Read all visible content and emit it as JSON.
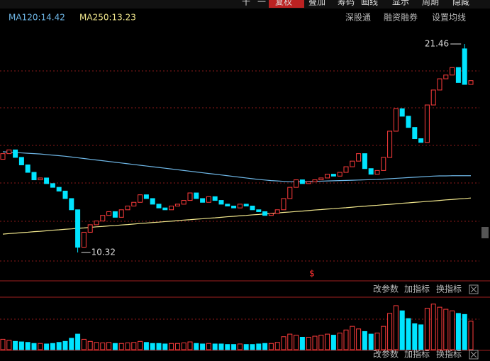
{
  "toolbar": [
    "十",
    "一",
    "复权",
    "叠加",
    "筹码",
    "画线",
    "显示",
    "周期",
    "隐藏"
  ],
  "top_links": [
    "深股通",
    "融资融券",
    "设置均线"
  ],
  "panel_buttons": [
    "改参数",
    "加指标",
    "换指标"
  ],
  "chart_data": {
    "type": "candlestick",
    "up_color": "#ff3c3c",
    "down_color": "#00e4ff",
    "ylim": [
      8.84,
      23.81
    ],
    "open": [
      15.3,
      15.6,
      15.8,
      15.4,
      15.0,
      14.6,
      14.2,
      14.3,
      14.0,
      13.8,
      13.6,
      13.2,
      12.6,
      10.6,
      11.4,
      11.8,
      12.0,
      12.3,
      12.5,
      12.2,
      12.6,
      12.8,
      13.0,
      13.4,
      13.2,
      12.9,
      12.7,
      12.6,
      12.8,
      12.9,
      13.1,
      13.5,
      13.2,
      13.0,
      13.3,
      13.1,
      12.9,
      12.8,
      12.7,
      12.9,
      12.8,
      12.6,
      12.5,
      12.3,
      12.4,
      12.6,
      13.2,
      13.8,
      14.2,
      14.0,
      14.1,
      14.2,
      14.3,
      14.5,
      14.4,
      14.6,
      14.9,
      15.2,
      15.6,
      14.8,
      14.5,
      14.7,
      15.4,
      16.8,
      18.0,
      17.6,
      17.0,
      16.4,
      16.2,
      18.2,
      19.0,
      19.6,
      19.8,
      20.2,
      21.2,
      19.3
    ],
    "close": [
      15.6,
      15.8,
      15.4,
      15.0,
      14.6,
      14.2,
      14.3,
      14.0,
      13.8,
      13.6,
      13.2,
      12.6,
      10.6,
      11.4,
      11.8,
      12.0,
      12.3,
      12.5,
      12.2,
      12.6,
      12.8,
      13.0,
      13.4,
      13.2,
      12.9,
      12.7,
      12.6,
      12.8,
      12.9,
      13.1,
      13.5,
      13.2,
      13.0,
      13.3,
      13.1,
      12.9,
      12.8,
      12.7,
      12.9,
      12.8,
      12.6,
      12.5,
      12.3,
      12.4,
      12.6,
      13.2,
      13.8,
      14.2,
      14.0,
      14.1,
      14.2,
      14.3,
      14.5,
      14.4,
      14.6,
      14.9,
      15.2,
      15.6,
      14.8,
      14.5,
      14.7,
      15.4,
      16.8,
      18.0,
      17.6,
      17.0,
      16.4,
      16.2,
      18.2,
      19.0,
      19.6,
      19.8,
      20.2,
      19.4,
      19.3,
      19.5
    ],
    "annotations": [
      {
        "label": "21.46",
        "value": 21.46
      },
      {
        "label": "10.32",
        "value": 10.32
      }
    ],
    "series": [
      {
        "name": "MA120",
        "label": "MA120:14.42",
        "color": "#6fb8e8",
        "values": [
          15.7,
          15.68,
          15.66,
          15.64,
          15.62,
          15.6,
          15.58,
          15.55,
          15.52,
          15.49,
          15.46,
          15.42,
          15.38,
          15.34,
          15.3,
          15.26,
          15.22,
          15.18,
          15.14,
          15.1,
          15.06,
          15.02,
          14.98,
          14.94,
          14.9,
          14.86,
          14.82,
          14.78,
          14.74,
          14.7,
          14.66,
          14.62,
          14.58,
          14.54,
          14.5,
          14.46,
          14.42,
          14.38,
          14.34,
          14.3,
          14.26,
          14.22,
          14.19,
          14.16,
          14.14,
          14.12,
          14.1,
          14.1,
          14.1,
          14.11,
          14.12,
          14.13,
          14.14,
          14.15,
          14.16,
          14.17,
          14.18,
          14.19,
          14.2,
          14.21,
          14.22,
          14.24,
          14.26,
          14.28,
          14.3,
          14.32,
          14.34,
          14.36,
          14.38,
          14.4,
          14.41,
          14.41,
          14.42,
          14.42,
          14.42,
          14.42
        ]
      },
      {
        "name": "MA250",
        "label": "MA250:13.23",
        "color": "#f0e68c",
        "values": [
          11.3,
          11.33,
          11.35,
          11.38,
          11.4,
          11.43,
          11.45,
          11.48,
          11.51,
          11.53,
          11.56,
          11.58,
          11.61,
          11.63,
          11.66,
          11.69,
          11.71,
          11.74,
          11.76,
          11.79,
          11.81,
          11.84,
          11.87,
          11.89,
          11.92,
          11.94,
          11.97,
          11.99,
          12.02,
          12.05,
          12.07,
          12.1,
          12.12,
          12.15,
          12.17,
          12.2,
          12.23,
          12.25,
          12.28,
          12.3,
          12.33,
          12.35,
          12.38,
          12.41,
          12.43,
          12.46,
          12.48,
          12.51,
          12.53,
          12.56,
          12.59,
          12.61,
          12.64,
          12.66,
          12.69,
          12.71,
          12.74,
          12.77,
          12.79,
          12.82,
          12.84,
          12.87,
          12.89,
          12.92,
          12.95,
          12.97,
          13.0,
          13.02,
          13.05,
          13.07,
          13.1,
          13.13,
          13.15,
          13.18,
          13.2,
          13.23
        ]
      }
    ],
    "volume_ylim": [
      0,
      100
    ],
    "volume": [
      20,
      18,
      16,
      15,
      14,
      12,
      12,
      11,
      12,
      14,
      16,
      22,
      30,
      20,
      16,
      14,
      13,
      14,
      12,
      12,
      13,
      14,
      16,
      14,
      12,
      12,
      11,
      12,
      12,
      13,
      15,
      12,
      11,
      12,
      11,
      11,
      10,
      10,
      11,
      10,
      10,
      11,
      12,
      12,
      14,
      25,
      30,
      28,
      24,
      24,
      26,
      28,
      30,
      28,
      32,
      38,
      45,
      40,
      35,
      30,
      32,
      45,
      70,
      85,
      75,
      60,
      50,
      48,
      80,
      88,
      82,
      78,
      75,
      70,
      68,
      55
    ]
  }
}
